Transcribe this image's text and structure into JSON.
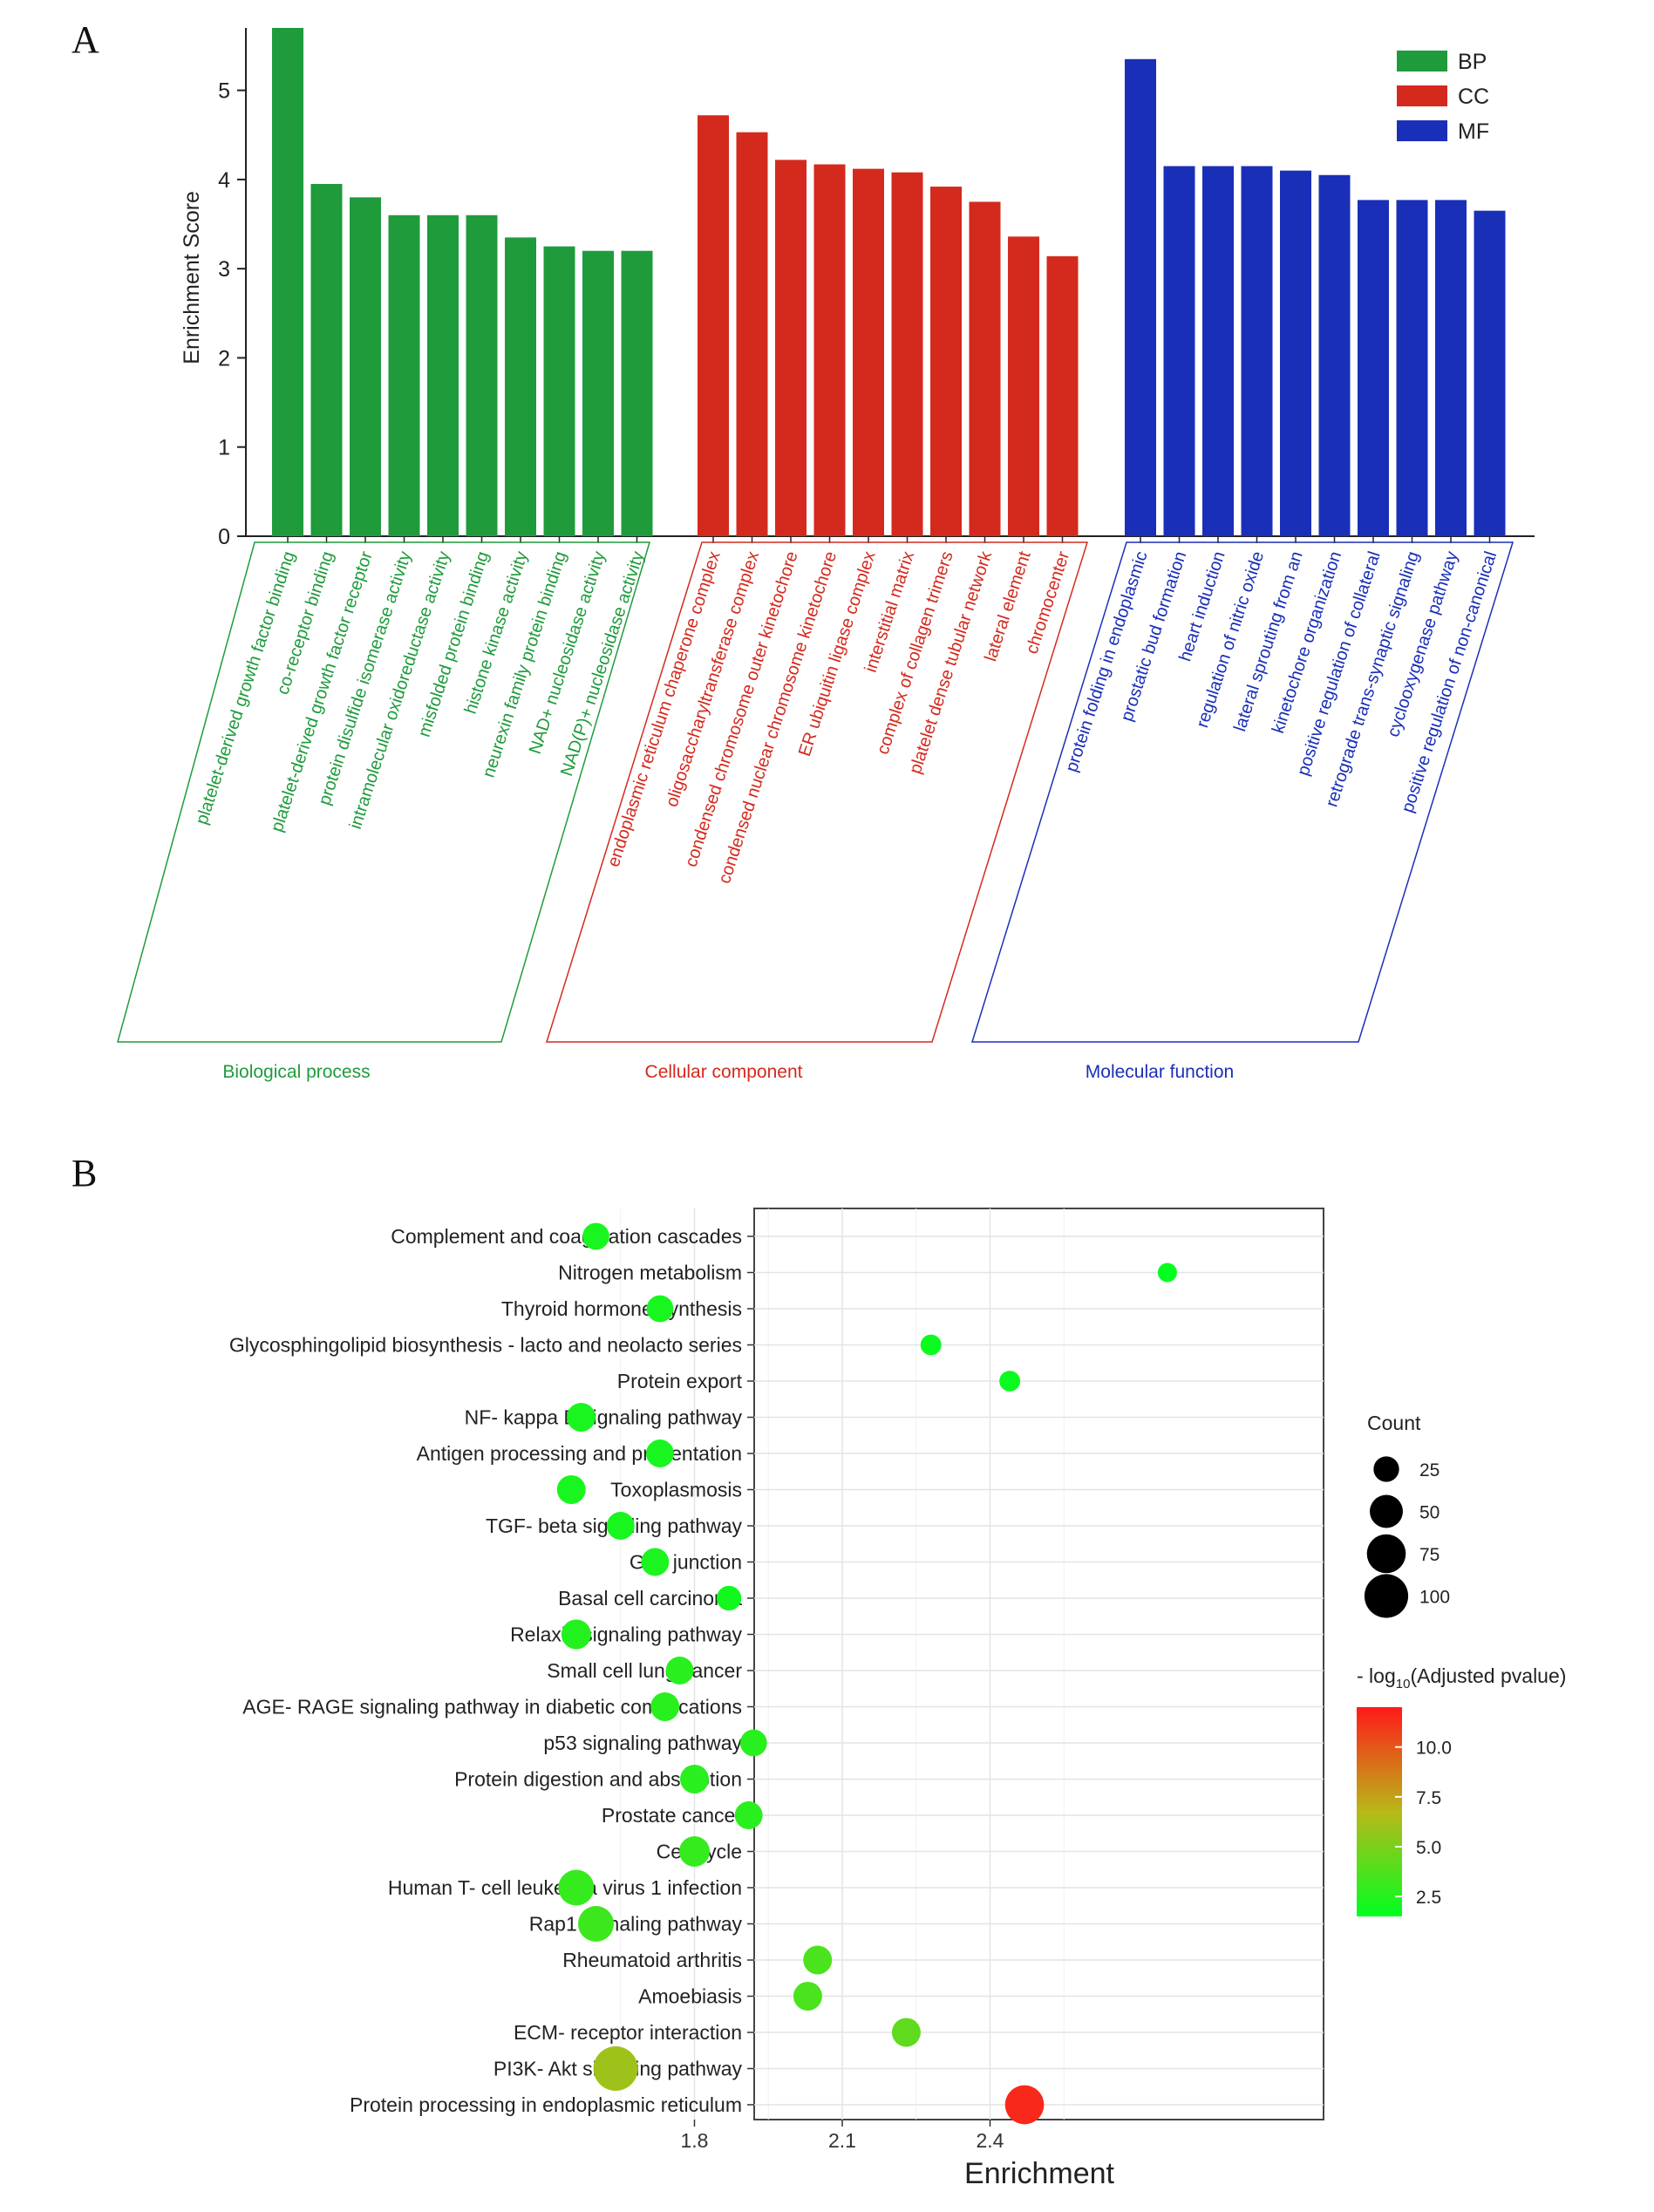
{
  "panel_labels": {
    "a": "A",
    "b": "B"
  },
  "chart_data": [
    {
      "type": "bar",
      "ylabel": "Enrichment Score",
      "xlabel": "",
      "ylim": [
        0,
        5.7
      ],
      "yticks": [
        0,
        1,
        2,
        3,
        4,
        5
      ],
      "legend_position": "top-right",
      "colors": {
        "BP": "#1f9b3c",
        "CC": "#d42a1e",
        "MF": "#1a2fb8"
      },
      "legend": [
        "BP",
        "CC",
        "MF"
      ],
      "groups": [
        {
          "key": "BP",
          "name": "Biological process",
          "color": "#1f9b3c",
          "categories": [
            "platelet-derived growth factor binding",
            "co-receptor binding",
            "platelet-derived growth factor receptor",
            "protein disulfide isomerase activity",
            "intramolecular oxidoreductase activity",
            "misfolded protein binding",
            "histone kinase activity",
            "neurexin family protein binding",
            "NAD+ nucleosidase activity",
            "NAD(P)+ nucleosidase activity"
          ],
          "values": [
            5.7,
            3.95,
            3.8,
            3.6,
            3.6,
            3.6,
            3.35,
            3.25,
            3.2,
            3.2
          ]
        },
        {
          "key": "CC",
          "name": "Cellular component",
          "color": "#d42a1e",
          "categories": [
            "endoplasmic reticulum chaperone complex",
            "oligosaccharyltransferase complex",
            "condensed chromosome outer kinetochore",
            "condensed nuclear chromosome kinetochore",
            "ER ubiquitin ligase complex",
            "interstitial matrix",
            "complex of collagen trimers",
            "platelet dense tubular network",
            "lateral element",
            "chromocenter"
          ],
          "values": [
            4.72,
            4.53,
            4.22,
            4.17,
            4.12,
            4.08,
            3.92,
            3.75,
            3.36,
            3.14
          ]
        },
        {
          "key": "MF",
          "name": "Molecular function",
          "color": "#1a2fb8",
          "categories": [
            "protein folding in endoplasmic",
            "prostatic bud formation",
            "heart induction",
            "regulation of nitric oxide",
            "lateral sprouting from an",
            "kinetochore organization",
            "positive regulation of collateral",
            "retrograde trans-synaptic signaling",
            "cyclooxygenase pathway",
            "positive regulation of non-canonical"
          ],
          "values": [
            5.35,
            4.15,
            4.15,
            4.15,
            4.1,
            4.05,
            3.77,
            3.77,
            3.77,
            3.65
          ]
        }
      ]
    },
    {
      "type": "scatter",
      "xlabel": "Enrichment",
      "ylabel": "",
      "xlim": [
        1.5,
        2.83
      ],
      "xticks": [
        1.8,
        2.1,
        2.4
      ],
      "xtick_labels": [
        "1.8",
        "2.1",
        "2.4"
      ],
      "grid": true,
      "legend_position": "right",
      "size_legend": {
        "title": "Count",
        "values": [
          25,
          50,
          75,
          100
        ],
        "labels": [
          "25",
          "50",
          "75",
          "100"
        ]
      },
      "color_legend": {
        "title_prefix": "- log",
        "title_sub": "10",
        "title_suffix": "(Adjusted pvalue)",
        "range": [
          1.5,
          12
        ],
        "ticks": [
          2.5,
          5.0,
          7.5,
          10.0
        ],
        "tick_labels": [
          "2.5",
          "5.0",
          "7.5",
          "10.0"
        ],
        "low_color": "#00ff20",
        "high_color": "#ff1a1a"
      },
      "points": [
        {
          "label": "Complement and coagulation cascades",
          "x": 1.6,
          "count": 18,
          "neglog10p": 2.2
        },
        {
          "label": "Nitrogen metabolism",
          "x": 2.76,
          "count": 6,
          "neglog10p": 1.6
        },
        {
          "label": "Thyroid hormone synthesis",
          "x": 1.73,
          "count": 18,
          "neglog10p": 2.2
        },
        {
          "label": "Glycosphingolipid biosynthesis -  lacto and neolacto series",
          "x": 2.28,
          "count": 8,
          "neglog10p": 1.8
        },
        {
          "label": "Protein export",
          "x": 2.44,
          "count": 8,
          "neglog10p": 1.8
        },
        {
          "label": "NF- kappa B signaling pathway",
          "x": 1.57,
          "count": 22,
          "neglog10p": 2.2
        },
        {
          "label": "Antigen processing and presentation",
          "x": 1.73,
          "count": 20,
          "neglog10p": 2.2
        },
        {
          "label": "Toxoplasmosis",
          "x": 1.55,
          "count": 22,
          "neglog10p": 2.2
        },
        {
          "label": "TGF- beta signaling pathway",
          "x": 1.65,
          "count": 20,
          "neglog10p": 2.2
        },
        {
          "label": "Gap junction",
          "x": 1.72,
          "count": 20,
          "neglog10p": 2.3
        },
        {
          "label": "Basal cell carcinoma",
          "x": 1.87,
          "count": 14,
          "neglog10p": 2.0
        },
        {
          "label": "Relaxin signaling pathway",
          "x": 1.56,
          "count": 24,
          "neglog10p": 2.5
        },
        {
          "label": "Small cell lung cancer",
          "x": 1.77,
          "count": 20,
          "neglog10p": 2.6
        },
        {
          "label": "AGE- RAGE signaling pathway in diabetic complications",
          "x": 1.74,
          "count": 22,
          "neglog10p": 2.6
        },
        {
          "label": "p53 signaling pathway",
          "x": 1.92,
          "count": 18,
          "neglog10p": 2.6
        },
        {
          "label": "Protein digestion and absorption",
          "x": 1.8,
          "count": 22,
          "neglog10p": 2.7
        },
        {
          "label": "Prostate cancer",
          "x": 1.91,
          "count": 20,
          "neglog10p": 2.7
        },
        {
          "label": "Cell cycle",
          "x": 1.8,
          "count": 26,
          "neglog10p": 3.0
        },
        {
          "label": "Human T- cell leukemia virus 1 infection",
          "x": 1.56,
          "count": 40,
          "neglog10p": 3.0
        },
        {
          "label": "Rap1 signaling pathway",
          "x": 1.6,
          "count": 40,
          "neglog10p": 3.2
        },
        {
          "label": "Rheumatoid arthritis",
          "x": 2.05,
          "count": 22,
          "neglog10p": 3.6
        },
        {
          "label": "Amoebiasis",
          "x": 2.03,
          "count": 22,
          "neglog10p": 3.6
        },
        {
          "label": "ECM- receptor interaction",
          "x": 2.23,
          "count": 22,
          "neglog10p": 4.2
        },
        {
          "label": "PI3K- Akt signaling pathway",
          "x": 1.64,
          "count": 70,
          "neglog10p": 6.0
        },
        {
          "label": "Protein processing in endoplasmic reticulum",
          "x": 2.47,
          "count": 50,
          "neglog10p": 11.5
        }
      ]
    }
  ]
}
